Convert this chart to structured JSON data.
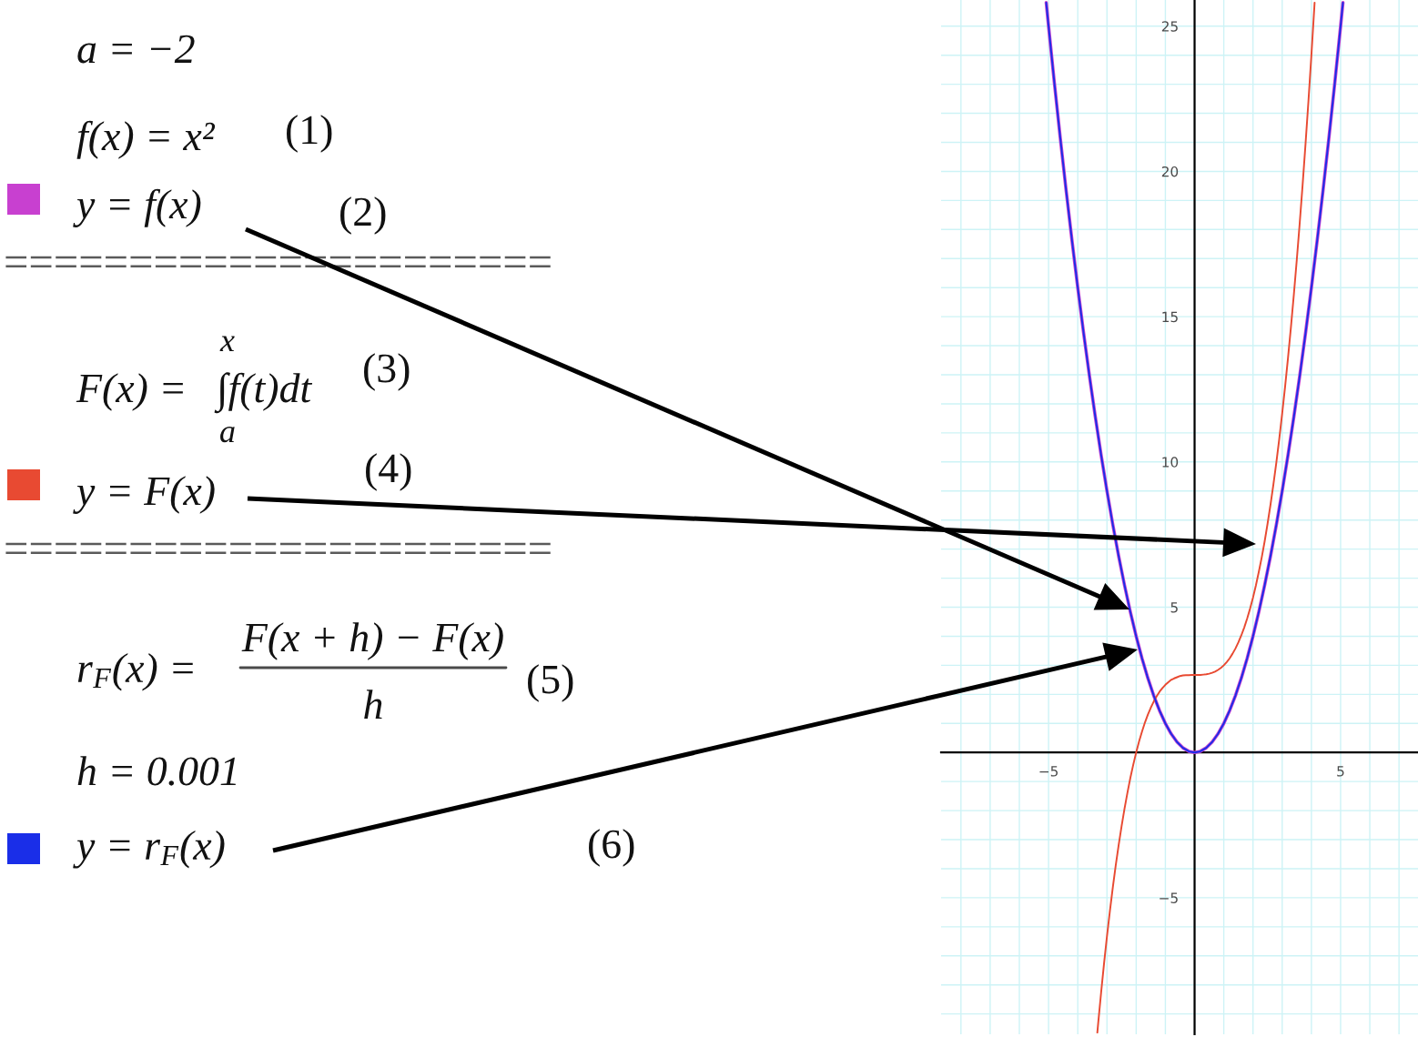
{
  "chart_data": {
    "type": "line",
    "annotations": [
      "a = −2",
      "f(x) = x²",
      "(1)",
      "(2)",
      "======================",
      "F(x) =",
      "∫f(t)dt",
      "x",
      "a",
      "(3)",
      "(4)",
      "======================",
      "r$_{F}$(x) =",
      "F(x + h) − F(x)",
      "h",
      "(5)",
      "h = 0.001",
      "(6)"
    ],
    "series": [
      {
        "name": "y = f(x)",
        "color": "#c840d0",
        "x": [
          -5.08,
          -5.0,
          -4.8,
          -4.6,
          -4.4,
          -4.2,
          -4.0,
          -3.8,
          -3.6,
          -3.4,
          -3.2,
          -3.0,
          -2.8,
          -2.6,
          -2.4,
          -2.2,
          -2.0,
          -1.8,
          -1.6,
          -1.4,
          -1.2,
          -1.0,
          -0.8,
          -0.6,
          -0.4,
          -0.2,
          0,
          0.2,
          0.4,
          0.6,
          0.8,
          1.0,
          1.2,
          1.4,
          1.6,
          1.8,
          2.0,
          2.2,
          2.4,
          2.6,
          2.8,
          3.0,
          3.2,
          3.4,
          3.6,
          3.8,
          4.0,
          4.2,
          4.4,
          4.6,
          4.8,
          5.0,
          5.08
        ],
        "values": [
          25.81,
          25,
          23.04,
          21.16,
          19.36,
          17.64,
          16,
          14.44,
          12.96,
          11.56,
          10.24,
          9,
          7.84,
          6.76,
          5.76,
          4.84,
          4,
          3.24,
          2.56,
          1.96,
          1.44,
          1,
          0.64,
          0.36,
          0.16,
          0.04,
          0,
          0.04,
          0.16,
          0.36,
          0.64,
          1,
          1.44,
          1.96,
          2.56,
          3.24,
          4,
          4.84,
          5.76,
          6.76,
          7.84,
          9,
          10.24,
          11.56,
          12.96,
          14.44,
          16,
          17.64,
          19.36,
          21.16,
          23.04,
          25,
          25.81
        ]
      },
      {
        "name": "y = F(x)",
        "color": "#e84a32",
        "x": [
          -3.33,
          -3.3,
          -3.2,
          -3.1,
          -3.0,
          -2.9,
          -2.8,
          -2.7,
          -2.6,
          -2.5,
          -2.4,
          -2.3,
          -2.2,
          -2.1,
          -2.0,
          -1.9,
          -1.8,
          -1.7,
          -1.6,
          -1.5,
          -1.4,
          -1.3,
          -1.2,
          -1.1,
          -1.0,
          -0.9,
          -0.8,
          -0.7,
          -0.6,
          -0.5,
          -0.4,
          -0.3,
          -0.2,
          -0.1,
          0,
          0.1,
          0.2,
          0.3,
          0.4,
          0.5,
          0.6,
          0.7,
          0.8,
          0.9,
          1.0,
          1.1,
          1.2,
          1.3,
          1.4,
          1.5,
          1.6,
          1.7,
          1.8,
          1.9,
          2.0,
          2.1,
          2.2,
          2.3,
          2.4,
          2.5,
          2.6,
          2.7,
          2.8,
          2.9,
          3.0,
          3.1,
          3.2,
          3.3,
          3.4,
          3.5,
          3.6,
          3.7,
          3.8,
          3.9,
          4.0,
          4.1,
          4.11
        ],
        "values": [
          -9.64,
          -9.31,
          -8.26,
          -7.26,
          -6.33,
          -5.46,
          -4.65,
          -3.89,
          -3.19,
          -2.54,
          -1.94,
          -1.39,
          -0.88,
          -0.42,
          0,
          0.38,
          0.72,
          1.03,
          1.3,
          1.54,
          1.75,
          1.93,
          2.09,
          2.22,
          2.33,
          2.42,
          2.5,
          2.55,
          2.59,
          2.63,
          2.65,
          2.66,
          2.66,
          2.67,
          2.67,
          2.67,
          2.67,
          2.68,
          2.69,
          2.71,
          2.74,
          2.78,
          2.84,
          2.91,
          3.0,
          3.11,
          3.24,
          3.4,
          3.58,
          3.79,
          4.03,
          4.3,
          4.61,
          4.95,
          5.33,
          5.75,
          6.22,
          6.72,
          7.27,
          7.88,
          8.53,
          9.23,
          9.98,
          10.8,
          11.67,
          12.6,
          13.59,
          14.65,
          15.77,
          16.96,
          18.22,
          19.55,
          20.96,
          22.44,
          24.0,
          25.64,
          25.81
        ]
      },
      {
        "name": "y = r$_{F}$(x)",
        "color": "#1a2ee8",
        "x": [
          -5.08,
          -5.0,
          -4.8,
          -4.6,
          -4.4,
          -4.2,
          -4.0,
          -3.8,
          -3.6,
          -3.4,
          -3.2,
          -3.0,
          -2.8,
          -2.6,
          -2.4,
          -2.2,
          -2.0,
          -1.8,
          -1.6,
          -1.4,
          -1.2,
          -1.0,
          -0.8,
          -0.6,
          -0.4,
          -0.2,
          0,
          0.2,
          0.4,
          0.6,
          0.8,
          1.0,
          1.2,
          1.4,
          1.6,
          1.8,
          2.0,
          2.2,
          2.4,
          2.6,
          2.8,
          3.0,
          3.2,
          3.4,
          3.6,
          3.8,
          4.0,
          4.2,
          4.4,
          4.6,
          4.8,
          5.0,
          5.08
        ],
        "values": [
          25.81,
          25,
          23.04,
          21.16,
          19.36,
          17.64,
          16,
          14.44,
          12.96,
          11.56,
          10.24,
          9,
          7.84,
          6.76,
          5.76,
          4.84,
          4,
          3.24,
          2.56,
          1.96,
          1.44,
          1,
          0.64,
          0.36,
          0.16,
          0.04,
          0,
          0.04,
          0.16,
          0.36,
          0.64,
          1,
          1.44,
          1.96,
          2.56,
          3.24,
          4,
          4.84,
          5.76,
          6.76,
          7.84,
          9,
          10.24,
          11.56,
          12.96,
          14.44,
          16,
          17.64,
          19.36,
          21.16,
          23.04,
          25,
          25.81
        ]
      }
    ],
    "xlim": [
      -8.68,
      7.65
    ],
    "ylim": [
      -9.7,
      25.9
    ],
    "xticks": [
      {
        "value": -8,
        "label": null
      },
      {
        "value": -7,
        "label": null
      },
      {
        "value": -6,
        "label": null
      },
      {
        "value": -5,
        "label": "−5"
      },
      {
        "value": -4,
        "label": null
      },
      {
        "value": -3,
        "label": null
      },
      {
        "value": -2,
        "label": null
      },
      {
        "value": -1,
        "label": null
      },
      {
        "value": 0,
        "label": null
      },
      {
        "value": 1,
        "label": null
      },
      {
        "value": 2,
        "label": null
      },
      {
        "value": 3,
        "label": null
      },
      {
        "value": 4,
        "label": null
      },
      5,
      {
        "value": 6,
        "label": null
      },
      {
        "value": 7,
        "label": null
      }
    ],
    "yticks": [
      {
        "value": -9,
        "label": null
      },
      {
        "value": -8,
        "label": null
      },
      {
        "value": -7,
        "label": null
      },
      {
        "value": -6,
        "label": null
      },
      {
        "value": -5,
        "label": "−5"
      },
      {
        "value": -4,
        "label": null
      },
      {
        "value": -3,
        "label": null
      },
      {
        "value": -2,
        "label": null
      },
      {
        "value": -1,
        "label": null
      },
      {
        "value": 0,
        "label": null
      },
      {
        "value": 1,
        "label": null
      },
      {
        "value": 2,
        "label": null
      },
      {
        "value": 3,
        "label": null
      },
      {
        "value": 4,
        "label": null
      },
      5,
      {
        "value": 6,
        "label": null
      },
      {
        "value": 7,
        "label": null
      },
      {
        "value": 8,
        "label": null
      },
      {
        "value": 9,
        "label": null
      },
      10,
      {
        "value": 11,
        "label": null
      },
      {
        "value": 12,
        "label": null
      },
      {
        "value": 13,
        "label": null
      },
      {
        "value": 14,
        "label": null
      },
      15,
      {
        "value": 16,
        "label": null
      },
      {
        "value": 17,
        "label": null
      },
      {
        "value": 18,
        "label": null
      },
      {
        "value": 19,
        "label": null
      },
      20,
      {
        "value": 21,
        "label": null
      },
      {
        "value": 22,
        "label": null
      },
      {
        "value": 23,
        "label": null
      },
      {
        "value": 24,
        "label": null
      },
      25
    ],
    "grid": true,
    "legend": "left"
  }
}
